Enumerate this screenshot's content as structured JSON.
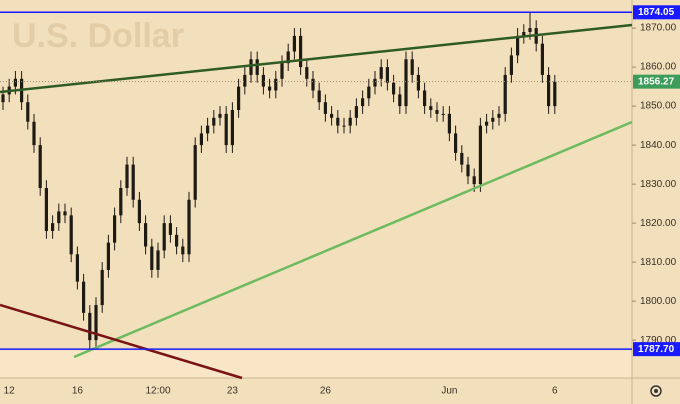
{
  "chart_data": {
    "type": "candlestick",
    "title": "U.S. Dollar",
    "categories": [
      null,
      "12",
      null,
      null,
      null,
      null,
      null,
      null,
      null,
      null,
      null,
      null,
      "16",
      null,
      null,
      null,
      null,
      null,
      null,
      null,
      null,
      null,
      null,
      null,
      null,
      "12:00",
      null,
      null,
      null,
      null,
      null,
      null,
      null,
      null,
      null,
      null,
      null,
      "23",
      null,
      null,
      null,
      null,
      null,
      null,
      null,
      null,
      null,
      null,
      null,
      null,
      null,
      null,
      "26",
      null,
      null,
      null,
      null,
      null,
      null,
      null,
      null,
      null,
      null,
      null,
      null,
      null,
      null,
      null,
      null,
      null,
      null,
      null,
      "Jun",
      null,
      null,
      null,
      null,
      null,
      null,
      null,
      null,
      null,
      null,
      null,
      null,
      null,
      null,
      null,
      null,
      "6"
    ],
    "open": [
      1851,
      1853,
      1855,
      1857,
      1851,
      1846,
      1840,
      1829,
      1818,
      1820,
      1823,
      1822,
      1812,
      1805,
      1797,
      1790,
      1799,
      1808,
      1815,
      1822,
      1829,
      1835,
      1826,
      1820,
      1814,
      1808,
      1813,
      1820,
      1817,
      1814,
      1812,
      1826,
      1840,
      1843,
      1845,
      1847,
      1848,
      1840,
      1849,
      1855,
      1858,
      1862,
      1858,
      1855,
      1854,
      1857,
      1861,
      1864,
      1868,
      1860,
      1857,
      1854,
      1851,
      1848,
      1847,
      1845,
      1845,
      1847,
      1850,
      1852,
      1855,
      1857,
      1860,
      1856,
      1853,
      1850,
      1862,
      1858,
      1854,
      1850,
      1849,
      1848,
      1848,
      1843,
      1838,
      1835,
      1832,
      1830,
      1845,
      1846,
      1847,
      1848,
      1858,
      1863,
      1868,
      1869,
      1870,
      1866,
      1858,
      1850
    ],
    "high": [
      1855,
      1857,
      1859,
      1859,
      1853,
      1848,
      1842,
      1831,
      1822,
      1825,
      1825,
      1824,
      1814,
      1807,
      1799,
      1801,
      1810,
      1817,
      1824,
      1831,
      1837,
      1837,
      1828,
      1822,
      1816,
      1815,
      1822,
      1822,
      1819,
      1816,
      1828,
      1842,
      1845,
      1847,
      1849,
      1850,
      1850,
      1851,
      1857,
      1860,
      1864,
      1864,
      1860,
      1857,
      1859,
      1863,
      1866,
      1870,
      1870,
      1862,
      1859,
      1856,
      1853,
      1850,
      1849,
      1847,
      1849,
      1852,
      1854,
      1857,
      1859,
      1862,
      1862,
      1858,
      1855,
      1864,
      1864,
      1860,
      1856,
      1852,
      1851,
      1850,
      1850,
      1845,
      1840,
      1837,
      1834,
      1847,
      1848,
      1849,
      1850,
      1860,
      1865,
      1870,
      1871,
      1874.05,
      1872,
      1868,
      1860,
      1858
    ],
    "low": [
      1849,
      1851,
      1853,
      1849,
      1844,
      1838,
      1827,
      1816,
      1816,
      1818,
      1820,
      1810,
      1803,
      1795,
      1787.7,
      1788,
      1797,
      1806,
      1813,
      1820,
      1827,
      1824,
      1818,
      1812,
      1806,
      1806,
      1811,
      1815,
      1812,
      1810,
      1810,
      1824,
      1838,
      1841,
      1843,
      1845,
      1838,
      1838,
      1847,
      1853,
      1856,
      1856,
      1853,
      1852,
      1852,
      1855,
      1859,
      1862,
      1858,
      1855,
      1852,
      1849,
      1846,
      1845,
      1843,
      1843,
      1843,
      1845,
      1848,
      1850,
      1853,
      1855,
      1854,
      1851,
      1848,
      1848,
      1856,
      1852,
      1848,
      1847,
      1846,
      1846,
      1841,
      1836,
      1833,
      1830,
      1828,
      1828,
      1843,
      1844,
      1845,
      1846,
      1856,
      1861,
      1866,
      1867,
      1864,
      1856,
      1848,
      1848
    ],
    "close": [
      1853,
      1855,
      1857,
      1851,
      1846,
      1840,
      1829,
      1818,
      1820,
      1823,
      1822,
      1812,
      1805,
      1797,
      1790,
      1799,
      1808,
      1815,
      1822,
      1829,
      1835,
      1826,
      1820,
      1814,
      1808,
      1813,
      1820,
      1817,
      1814,
      1812,
      1826,
      1840,
      1843,
      1845,
      1847,
      1848,
      1840,
      1849,
      1855,
      1858,
      1862,
      1858,
      1855,
      1854,
      1857,
      1861,
      1864,
      1868,
      1860,
      1857,
      1854,
      1851,
      1848,
      1847,
      1845,
      1845,
      1847,
      1850,
      1852,
      1855,
      1857,
      1860,
      1856,
      1853,
      1850,
      1862,
      1858,
      1854,
      1850,
      1849,
      1848,
      1848,
      1843,
      1838,
      1835,
      1832,
      1830,
      1845,
      1846,
      1847,
      1848,
      1858,
      1863,
      1868,
      1869,
      1870,
      1866,
      1858,
      1850,
      1856.27
    ],
    "color": "#1e1a14",
    "last_color": "#3e9c5b",
    "levels": [
      {
        "value": 1874.05,
        "color": "#1a1aff"
      },
      {
        "value": 1787.7,
        "label": "1787.70",
        "color": "#1a1aff"
      }
    ],
    "ylim": [
      1780.3,
      1877.2
    ],
    "yticks": [
      {
        "value": 1790,
        "label": "1790.00"
      },
      {
        "value": 1800,
        "label": "1800.00"
      },
      {
        "value": 1810,
        "label": "1810.00"
      },
      {
        "value": 1820,
        "label": "1820.00"
      },
      {
        "value": 1830,
        "label": "1830.00"
      },
      {
        "value": 1840,
        "label": "1840.00"
      },
      {
        "value": 1850,
        "label": "1850.00"
      },
      {
        "value": 1860,
        "label": "1860.00"
      },
      {
        "value": 1870,
        "label": "1870.00"
      }
    ]
  }
}
